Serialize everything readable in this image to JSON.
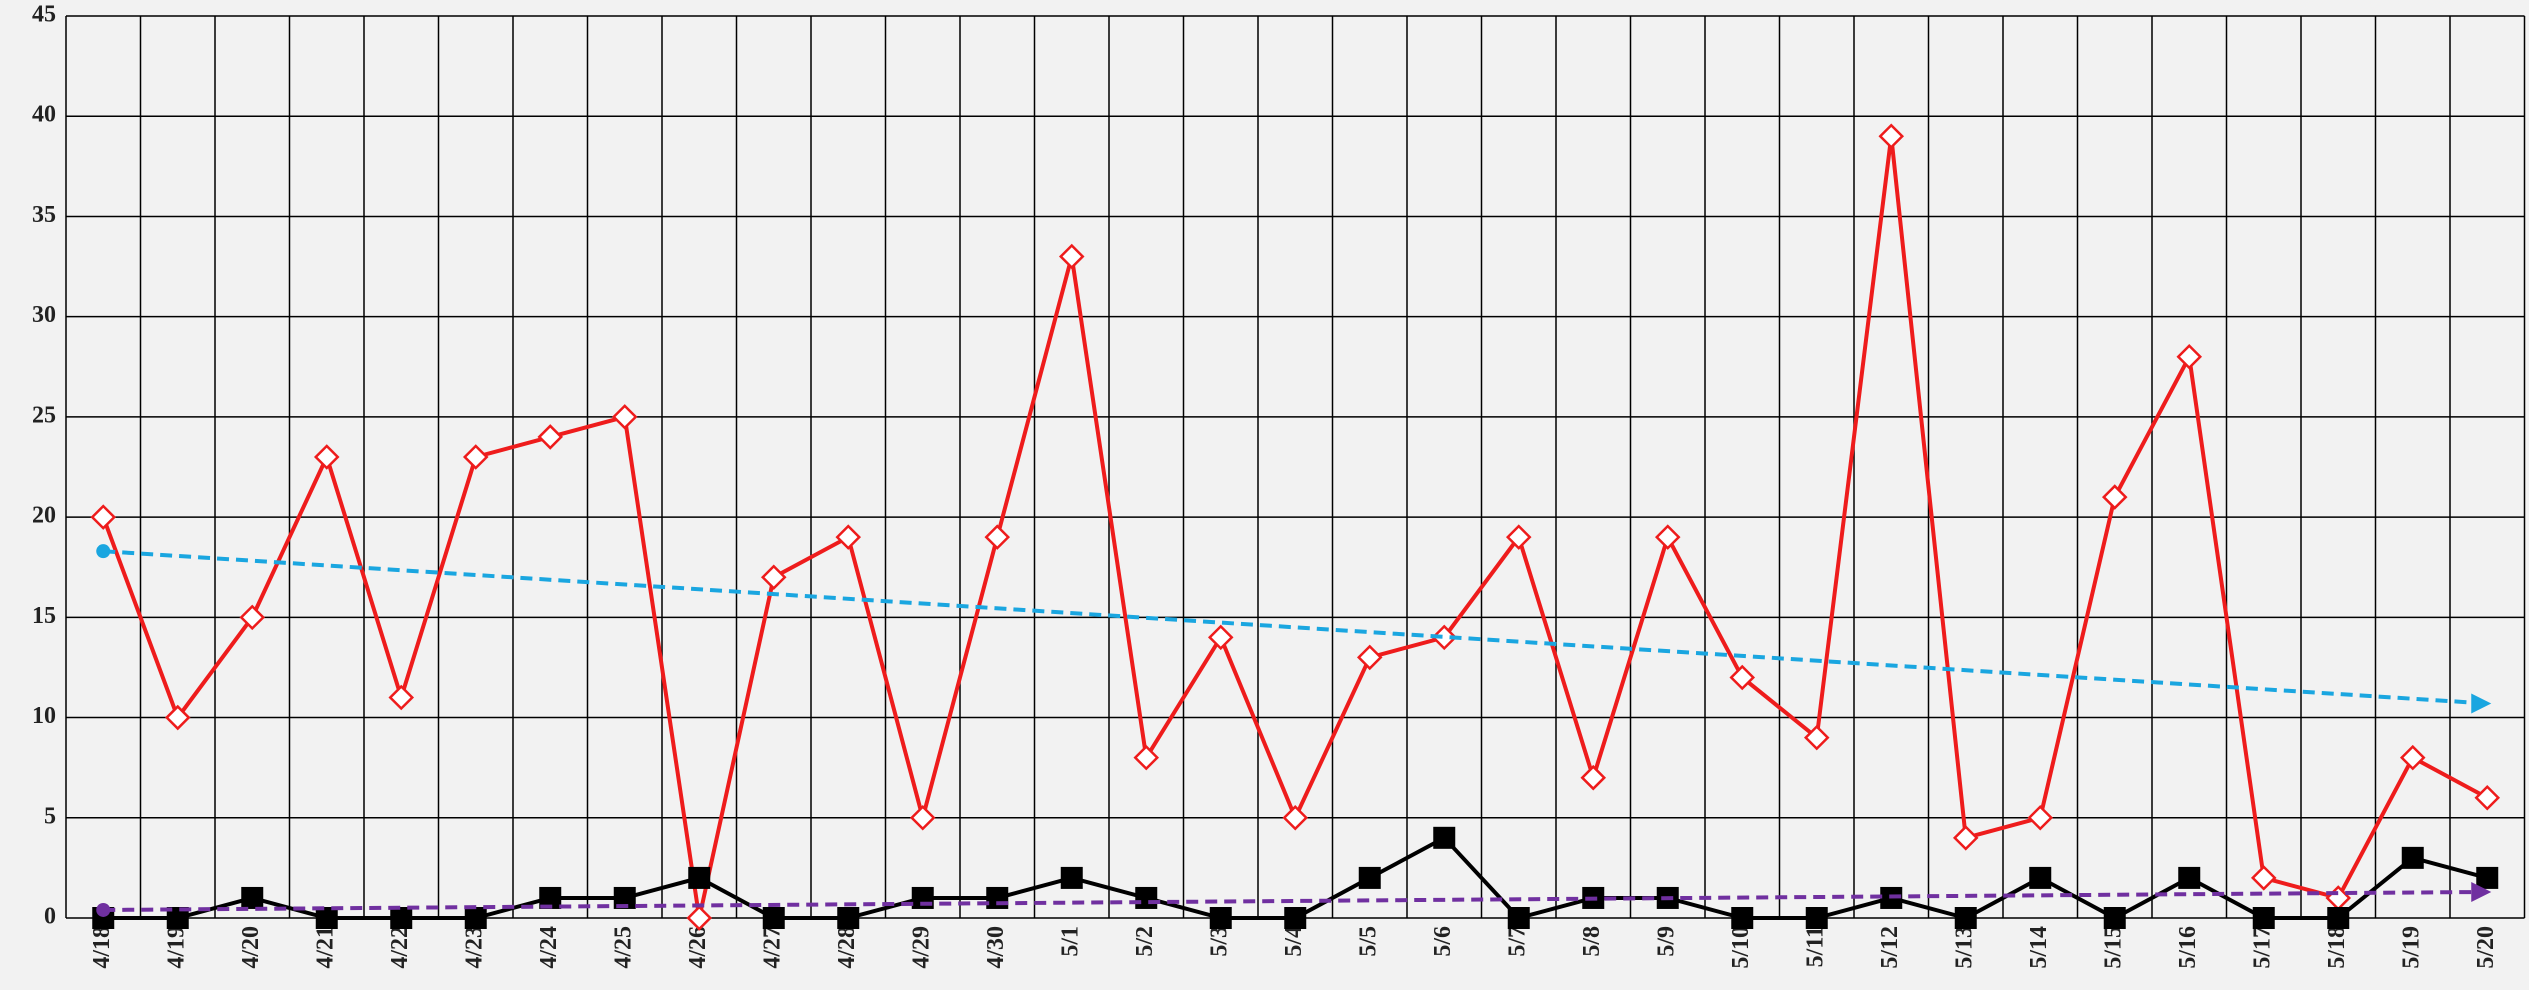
{
  "chart_data": {
    "type": "line",
    "categories": [
      "4/18",
      "4/19",
      "4/20",
      "4/21",
      "4/22",
      "4/23",
      "4/24",
      "4/25",
      "4/26",
      "4/27",
      "4/28",
      "4/29",
      "4/30",
      "5/1",
      "5/2",
      "5/3",
      "5/4",
      "5/5",
      "5/6",
      "5/7",
      "5/8",
      "5/9",
      "5/10",
      "5/11",
      "5/12",
      "5/13",
      "5/14",
      "5/15",
      "5/16",
      "5/17",
      "5/18",
      "5/19",
      "5/20"
    ],
    "series": [
      {
        "color": "#ee1c1c",
        "marker": "diamond",
        "values": [
          20,
          10,
          15,
          23,
          11,
          23,
          24,
          25,
          0,
          17,
          19,
          5,
          19,
          33,
          8,
          14,
          5,
          13,
          14,
          19,
          7,
          19,
          12,
          9,
          39,
          4,
          5,
          21,
          28,
          2,
          1,
          8,
          6
        ],
        "trend": {
          "color": "#1aa6e0",
          "values": [
            18.3,
            10.7
          ]
        }
      },
      {
        "color": "#000000",
        "marker": "square",
        "values": [
          0,
          0,
          1,
          0,
          0,
          0,
          1,
          1,
          2,
          0,
          0,
          1,
          1,
          2,
          1,
          0,
          0,
          2,
          4,
          0,
          1,
          1,
          0,
          0,
          1,
          0,
          2,
          0,
          2,
          0,
          0,
          3,
          2
        ],
        "trend": {
          "color": "#7030a0",
          "values": [
            0.4,
            1.3
          ]
        }
      }
    ],
    "ylim": [
      0,
      45
    ],
    "yticks": [
      0,
      5,
      10,
      15,
      20,
      25,
      30,
      35,
      40,
      45
    ],
    "grid": true
  }
}
